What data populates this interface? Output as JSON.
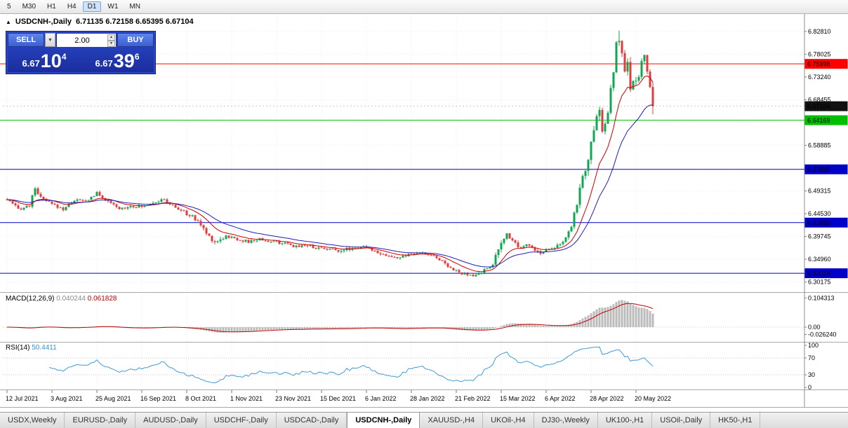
{
  "toolbar": {
    "timeframes": [
      "5",
      "M30",
      "H1",
      "H4",
      "D1",
      "W1",
      "MN"
    ],
    "active": "D1"
  },
  "chart": {
    "collapse_icon": "▲",
    "symbol_title": "USDCNH-,Daily",
    "ohlc": "6.71135 6.72158 6.65395 6.67104",
    "trade_panel": {
      "sell_label": "SELL",
      "buy_label": "BUY",
      "volume": "2.00",
      "sell_price": {
        "base": "6.67",
        "pips": "10",
        "pt": "4"
      },
      "buy_price": {
        "base": "6.67",
        "pips": "39",
        "pt": "6"
      }
    },
    "price_axis_labels": [
      "6.82810",
      "6.78025",
      "6.73240",
      "6.68455",
      "6.63670",
      "6.58885",
      "6.54100",
      "6.49315",
      "6.44530",
      "6.39745",
      "6.34960",
      "6.30175"
    ],
    "levels": [
      {
        "price": 6.75998,
        "label": "6.75998",
        "color": "#FF0000",
        "type": "hline"
      },
      {
        "price": 6.67104,
        "label": "6.67104",
        "color": "#111111",
        "type": "bid"
      },
      {
        "price": 6.64169,
        "label": "6.64169",
        "color": "#00BE00",
        "type": "hline"
      },
      {
        "price": 6.53845,
        "label": "6.53845",
        "color": "#0000C8",
        "type": "hline"
      },
      {
        "price": 6.4266,
        "label": "6.42660",
        "color": "#0000C8",
        "type": "hline"
      },
      {
        "price": 6.32018,
        "label": "6.32018",
        "color": "#0000C8",
        "type": "hline"
      }
    ],
    "date_labels": [
      "12 Jul 2021",
      "3 Aug 2021",
      "25 Aug 2021",
      "16 Sep 2021",
      "8 Oct 2021",
      "1 Nov 2021",
      "23 Nov 2021",
      "15 Dec 2021",
      "6 Jan 2022",
      "28 Jan 2022",
      "21 Feb 2022",
      "15 Mar 2022",
      "6 Apr 2022",
      "28 Apr 2022",
      "20 May 2022"
    ],
    "bars_per_label": 16,
    "price_range": {
      "top": 6.85,
      "bottom": 6.285
    },
    "colors": {
      "up": "#12A552",
      "down": "#E13B3B",
      "ma_fast": "#CC0000",
      "ma_slow": "#1F1FB4"
    },
    "candle_anchors": [
      [
        0,
        6.475
      ],
      [
        4,
        6.455
      ],
      [
        8,
        6.462
      ],
      [
        10,
        6.5
      ],
      [
        12,
        6.478
      ],
      [
        16,
        6.465
      ],
      [
        20,
        6.455
      ],
      [
        24,
        6.474
      ],
      [
        28,
        6.472
      ],
      [
        32,
        6.488
      ],
      [
        36,
        6.47
      ],
      [
        40,
        6.455
      ],
      [
        44,
        6.462
      ],
      [
        48,
        6.46
      ],
      [
        52,
        6.47
      ],
      [
        56,
        6.474
      ],
      [
        60,
        6.458
      ],
      [
        64,
        6.446
      ],
      [
        68,
        6.43
      ],
      [
        71,
        6.404
      ],
      [
        74,
        6.386
      ],
      [
        78,
        6.398
      ],
      [
        82,
        6.392
      ],
      [
        86,
        6.386
      ],
      [
        90,
        6.392
      ],
      [
        94,
        6.386
      ],
      [
        98,
        6.384
      ],
      [
        102,
        6.376
      ],
      [
        106,
        6.38
      ],
      [
        110,
        6.374
      ],
      [
        114,
        6.372
      ],
      [
        118,
        6.368
      ],
      [
        122,
        6.372
      ],
      [
        126,
        6.376
      ],
      [
        130,
        6.37
      ],
      [
        134,
        6.36
      ],
      [
        138,
        6.352
      ],
      [
        142,
        6.356
      ],
      [
        146,
        6.363
      ],
      [
        150,
        6.36
      ],
      [
        154,
        6.35
      ],
      [
        158,
        6.332
      ],
      [
        162,
        6.318
      ],
      [
        166,
        6.314
      ],
      [
        170,
        6.326
      ],
      [
        173,
        6.34
      ],
      [
        176,
        6.382
      ],
      [
        178,
        6.403
      ],
      [
        180,
        6.392
      ],
      [
        182,
        6.376
      ],
      [
        185,
        6.381
      ],
      [
        188,
        6.37
      ],
      [
        190,
        6.361
      ],
      [
        192,
        6.37
      ],
      [
        195,
        6.376
      ],
      [
        198,
        6.386
      ],
      [
        200,
        6.4
      ],
      [
        202,
        6.444
      ],
      [
        204,
        6.498
      ],
      [
        206,
        6.54
      ],
      [
        208,
        6.588
      ],
      [
        210,
        6.645
      ],
      [
        211,
        6.668
      ],
      [
        212,
        6.616
      ],
      [
        213,
        6.632
      ],
      [
        214,
        6.66
      ],
      [
        216,
        6.744
      ],
      [
        217,
        6.798
      ],
      [
        218,
        6.814
      ],
      [
        219,
        6.778
      ],
      [
        220,
        6.744
      ],
      [
        221,
        6.758
      ],
      [
        222,
        6.7
      ],
      [
        223,
        6.728
      ],
      [
        224,
        6.718
      ],
      [
        225,
        6.74
      ],
      [
        226,
        6.764
      ],
      [
        227,
        6.776
      ],
      [
        228,
        6.74
      ],
      [
        229,
        6.708
      ],
      [
        230,
        6.671
      ]
    ]
  },
  "macd": {
    "title": "MACD(12,26,9)",
    "value_main": "0.040244",
    "value_signal": "0.061828",
    "axis_labels": [
      "0.104313",
      "0.00",
      "-0.026240"
    ]
  },
  "rsi": {
    "title": "RSI(14)",
    "value": "50.4411",
    "axis_labels": [
      "100",
      "70",
      "30",
      "0"
    ],
    "levels": [
      70,
      30
    ]
  },
  "tabs": [
    "USDX,Weekly",
    "EURUSD-,Daily",
    "AUDUSD-,Daily",
    "USDCHF-,Daily",
    "USDCAD-,Daily",
    "USDCNH-,Daily",
    "XAUUSD-,H4",
    "UKOil-,H4",
    "DJ30-,Weekly",
    "UK100-,H1",
    "USOil-,Daily",
    "HK50-,H1"
  ],
  "active_tab": "USDCNH-,Daily"
}
